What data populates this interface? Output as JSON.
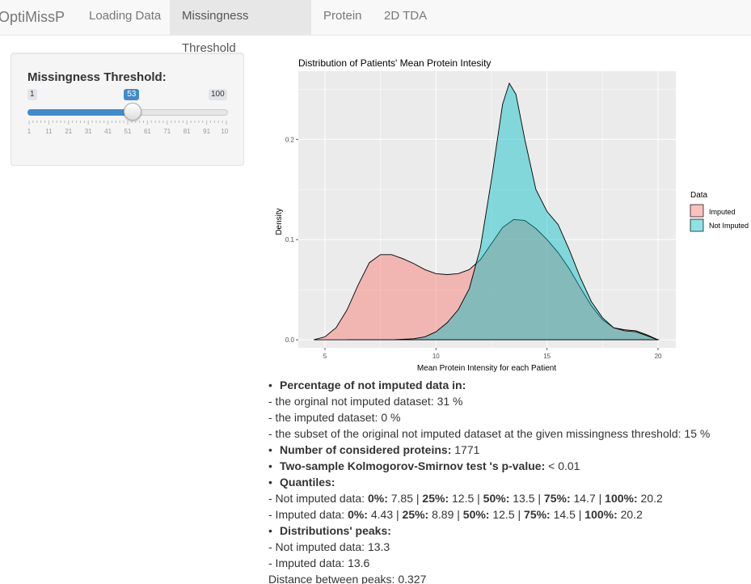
{
  "navbar": {
    "brand": "OptiMissP",
    "tabs": [
      {
        "label": "Loading Data",
        "active": false
      },
      {
        "label": "Missingness Threshold",
        "active": true
      },
      {
        "label": "Protein",
        "active": false
      },
      {
        "label": "2D TDA",
        "active": false
      }
    ]
  },
  "sidebar": {
    "label": "Missingness Threshold:",
    "slider": {
      "min": 1,
      "max": 100,
      "value": 53,
      "min_label": "1",
      "max_label": "100",
      "value_label": "53",
      "ticks": [
        "1",
        "11",
        "21",
        "31",
        "41",
        "51",
        "61",
        "71",
        "81",
        "91",
        "100"
      ]
    }
  },
  "chart_data": {
    "type": "area",
    "title": "Distribution of Patients' Mean Protein Intesity",
    "xlabel": "Mean Protein Intensity for each Patient",
    "ylabel": "Density",
    "xlim": [
      3.8,
      20.8
    ],
    "ylim": [
      -0.008,
      0.268
    ],
    "xticks": [
      5,
      10,
      15,
      20
    ],
    "yticks": [
      0.0,
      0.1,
      0.2
    ],
    "ytick_labels": [
      "0.0",
      "0.1",
      "0.2"
    ],
    "grid": true,
    "legend": {
      "title": "Data",
      "position": "right"
    },
    "series": [
      {
        "name": "Imputed",
        "fill": "#F8766D",
        "points": [
          [
            4.5,
            0.0
          ],
          [
            5.0,
            0.003
          ],
          [
            5.5,
            0.012
          ],
          [
            6.0,
            0.03
          ],
          [
            6.5,
            0.055
          ],
          [
            7.0,
            0.077
          ],
          [
            7.5,
            0.085
          ],
          [
            8.0,
            0.085
          ],
          [
            8.5,
            0.081
          ],
          [
            9.0,
            0.076
          ],
          [
            9.5,
            0.07
          ],
          [
            10.0,
            0.066
          ],
          [
            10.5,
            0.065
          ],
          [
            11.0,
            0.066
          ],
          [
            11.5,
            0.07
          ],
          [
            12.0,
            0.08
          ],
          [
            12.5,
            0.096
          ],
          [
            13.0,
            0.112
          ],
          [
            13.5,
            0.12
          ],
          [
            14.0,
            0.119
          ],
          [
            14.5,
            0.111
          ],
          [
            15.0,
            0.1
          ],
          [
            15.5,
            0.087
          ],
          [
            16.0,
            0.071
          ],
          [
            16.5,
            0.052
          ],
          [
            17.0,
            0.034
          ],
          [
            17.5,
            0.02
          ],
          [
            18.0,
            0.012
          ],
          [
            18.5,
            0.01
          ],
          [
            19.0,
            0.009
          ],
          [
            19.5,
            0.005
          ],
          [
            20.0,
            0.0
          ]
        ]
      },
      {
        "name": "Not Imputed",
        "fill": "#00BFC4",
        "points": [
          [
            6.0,
            0.0
          ],
          [
            8.0,
            0.0
          ],
          [
            9.0,
            0.001
          ],
          [
            9.5,
            0.003
          ],
          [
            10.0,
            0.008
          ],
          [
            10.5,
            0.017
          ],
          [
            11.0,
            0.03
          ],
          [
            11.5,
            0.051
          ],
          [
            12.0,
            0.092
          ],
          [
            12.5,
            0.16
          ],
          [
            13.0,
            0.235
          ],
          [
            13.3,
            0.256
          ],
          [
            13.6,
            0.245
          ],
          [
            14.0,
            0.2
          ],
          [
            14.5,
            0.15
          ],
          [
            15.0,
            0.128
          ],
          [
            15.5,
            0.115
          ],
          [
            16.0,
            0.09
          ],
          [
            16.5,
            0.062
          ],
          [
            17.0,
            0.038
          ],
          [
            17.5,
            0.022
          ],
          [
            18.0,
            0.012
          ],
          [
            18.5,
            0.009
          ],
          [
            19.0,
            0.008
          ],
          [
            19.5,
            0.004
          ],
          [
            20.0,
            0.0
          ]
        ]
      }
    ]
  },
  "stats": {
    "pct_title": "Percentage of not imputed data in:",
    "orig_label": "- the orginal not imputed dataset:",
    "orig_value": "31 %",
    "imputed_label": "- the imputed dataset:",
    "imputed_value": "0 %",
    "subset_label": "- the subset of the original not imputed dataset at the given missingness threshold:",
    "subset_value": "15 %",
    "proteins_title": "Number of considered proteins:",
    "proteins_value": "1771",
    "ks_title": "Two-sample Kolmogorov-Smirnov test 's p-value:",
    "ks_value": "< 0.01",
    "quantiles_title": "Quantiles:",
    "q_not_imputed_label": "- Not imputed data:",
    "q_imputed_label": "- Imputed data:",
    "q_keys": [
      "0%:",
      "25%:",
      "50%:",
      "75%:",
      "100%:"
    ],
    "q_not_imputed": [
      "7.85",
      "12.5",
      "13.5",
      "14.7",
      "20.2"
    ],
    "q_imputed": [
      "4.43",
      "8.89",
      "12.5",
      "14.5",
      "20.2"
    ],
    "sep": "|",
    "peaks_title": "Distributions' peaks:",
    "peak_not_imputed_label": "- Not imputed data:",
    "peak_not_imputed_value": "13.3",
    "peak_imputed_label": "- Imputed data:",
    "peak_imputed_value": "13.6",
    "distance_label": "Distance between peaks:",
    "distance_value": "0.327"
  }
}
